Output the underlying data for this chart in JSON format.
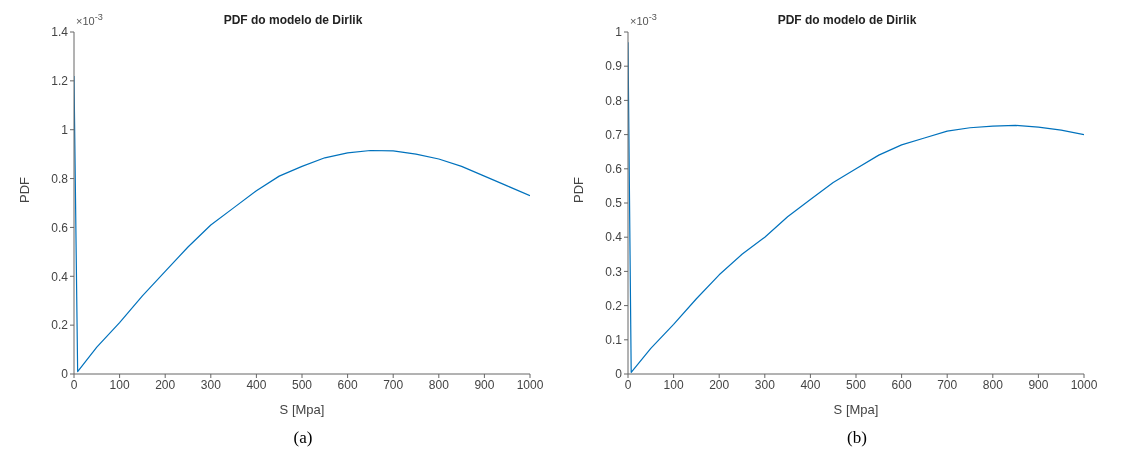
{
  "chart_data": [
    {
      "type": "line",
      "title": "PDF do modelo de Dirlik",
      "xlabel": "S [Mpa]",
      "ylabel": "PDF",
      "annotations": [
        "×10$^{-3}$",
        "(a)"
      ],
      "x": [
        0,
        8,
        50,
        100,
        150,
        200,
        250,
        300,
        350,
        400,
        450,
        500,
        550,
        600,
        650,
        700,
        750,
        800,
        850,
        900,
        950,
        1000
      ],
      "series": [
        {
          "color": "#0072bd",
          "values": [
            1.22,
            0.01,
            0.11,
            0.21,
            0.32,
            0.42,
            0.52,
            0.61,
            0.68,
            0.75,
            0.81,
            0.85,
            0.885,
            0.905,
            0.915,
            0.913,
            0.9,
            0.88,
            0.85,
            0.81,
            0.77,
            0.73
          ]
        }
      ],
      "xlim": [
        0,
        1000
      ],
      "xticks": [
        0,
        100,
        200,
        300,
        400,
        500,
        600,
        700,
        800,
        900,
        1000
      ],
      "ylim": [
        0,
        1.4
      ],
      "yticks": [
        0,
        0.2,
        0.4,
        0.6,
        0.8,
        1,
        1.2,
        1.4
      ],
      "grid": false,
      "legend": false,
      "marker": "none",
      "line_style": "solid"
    },
    {
      "type": "line",
      "title": "PDF do modelo de Dirlik",
      "xlabel": "S [Mpa]",
      "ylabel": "PDF",
      "annotations": [
        "×10$^{-3}$",
        "(b)"
      ],
      "x": [
        0,
        7,
        50,
        100,
        150,
        200,
        250,
        300,
        350,
        400,
        450,
        500,
        550,
        600,
        650,
        700,
        750,
        800,
        850,
        900,
        950,
        1000
      ],
      "series": [
        {
          "color": "#0072bd",
          "values": [
            0.97,
            0.005,
            0.075,
            0.145,
            0.22,
            0.29,
            0.35,
            0.4,
            0.46,
            0.51,
            0.56,
            0.6,
            0.64,
            0.67,
            0.69,
            0.71,
            0.72,
            0.725,
            0.727,
            0.722,
            0.713,
            0.7
          ]
        }
      ],
      "xlim": [
        0,
        1000
      ],
      "xticks": [
        0,
        100,
        200,
        300,
        400,
        500,
        600,
        700,
        800,
        900,
        1000
      ],
      "ylim": [
        0,
        1
      ],
      "yticks": [
        0,
        0.1,
        0.2,
        0.3,
        0.4,
        0.5,
        0.6,
        0.7,
        0.8,
        0.9,
        1
      ],
      "grid": false,
      "legend": false,
      "marker": "none",
      "line_style": "solid"
    }
  ]
}
